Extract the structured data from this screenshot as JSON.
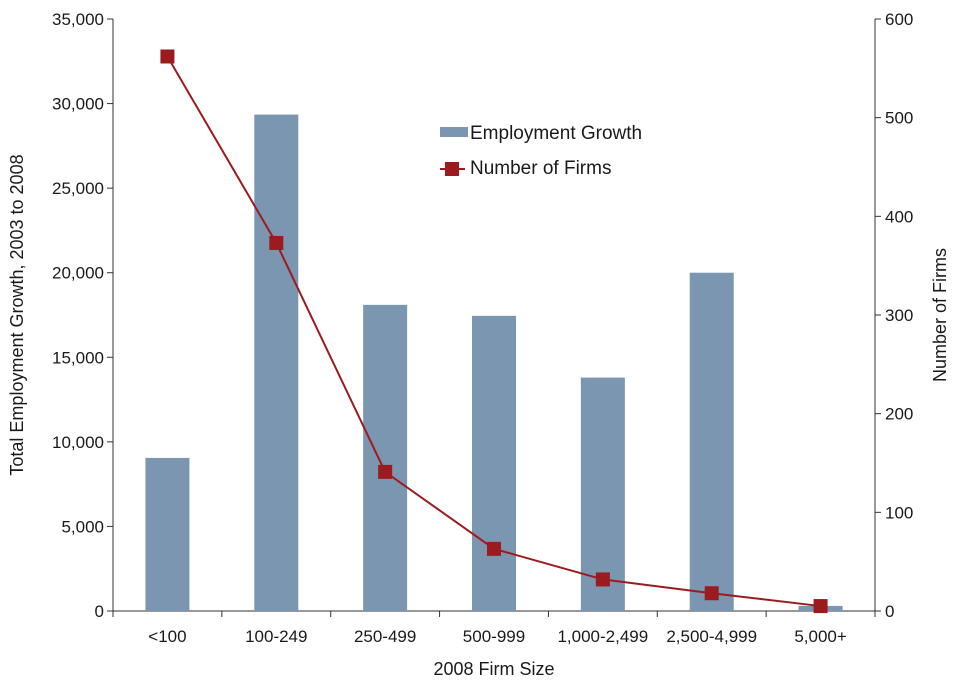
{
  "chart_data": {
    "type": "bar",
    "title": "",
    "xlabel": "2008 Firm Size",
    "ylabel": "Total Employment Growth, 2003 to 2008",
    "y2label": "Number of Firms",
    "categories": [
      "<100",
      "100-249",
      "250-499",
      "500-999",
      "1,000-2,499",
      "2,500-4,999",
      "5,000+"
    ],
    "ylim": [
      0,
      35000
    ],
    "y2lim": [
      0,
      600
    ],
    "yticks": [
      "0",
      "5,000",
      "10,000",
      "15,000",
      "20,000",
      "25,000",
      "30,000",
      "35,000"
    ],
    "y2ticks": [
      "0",
      "100",
      "200",
      "300",
      "400",
      "500",
      "600"
    ],
    "grid": false,
    "legend_position": "top-center",
    "series": [
      {
        "name": "Employment Growth",
        "type": "bar",
        "axis": "left",
        "color": "#7b96b1",
        "values": [
          9050,
          29350,
          18100,
          17450,
          13800,
          20000,
          300
        ]
      },
      {
        "name": "Number of Firms",
        "type": "line",
        "axis": "right",
        "color": "#9b1b1e",
        "values": [
          562,
          373,
          141,
          63,
          32,
          18,
          5
        ]
      }
    ]
  }
}
